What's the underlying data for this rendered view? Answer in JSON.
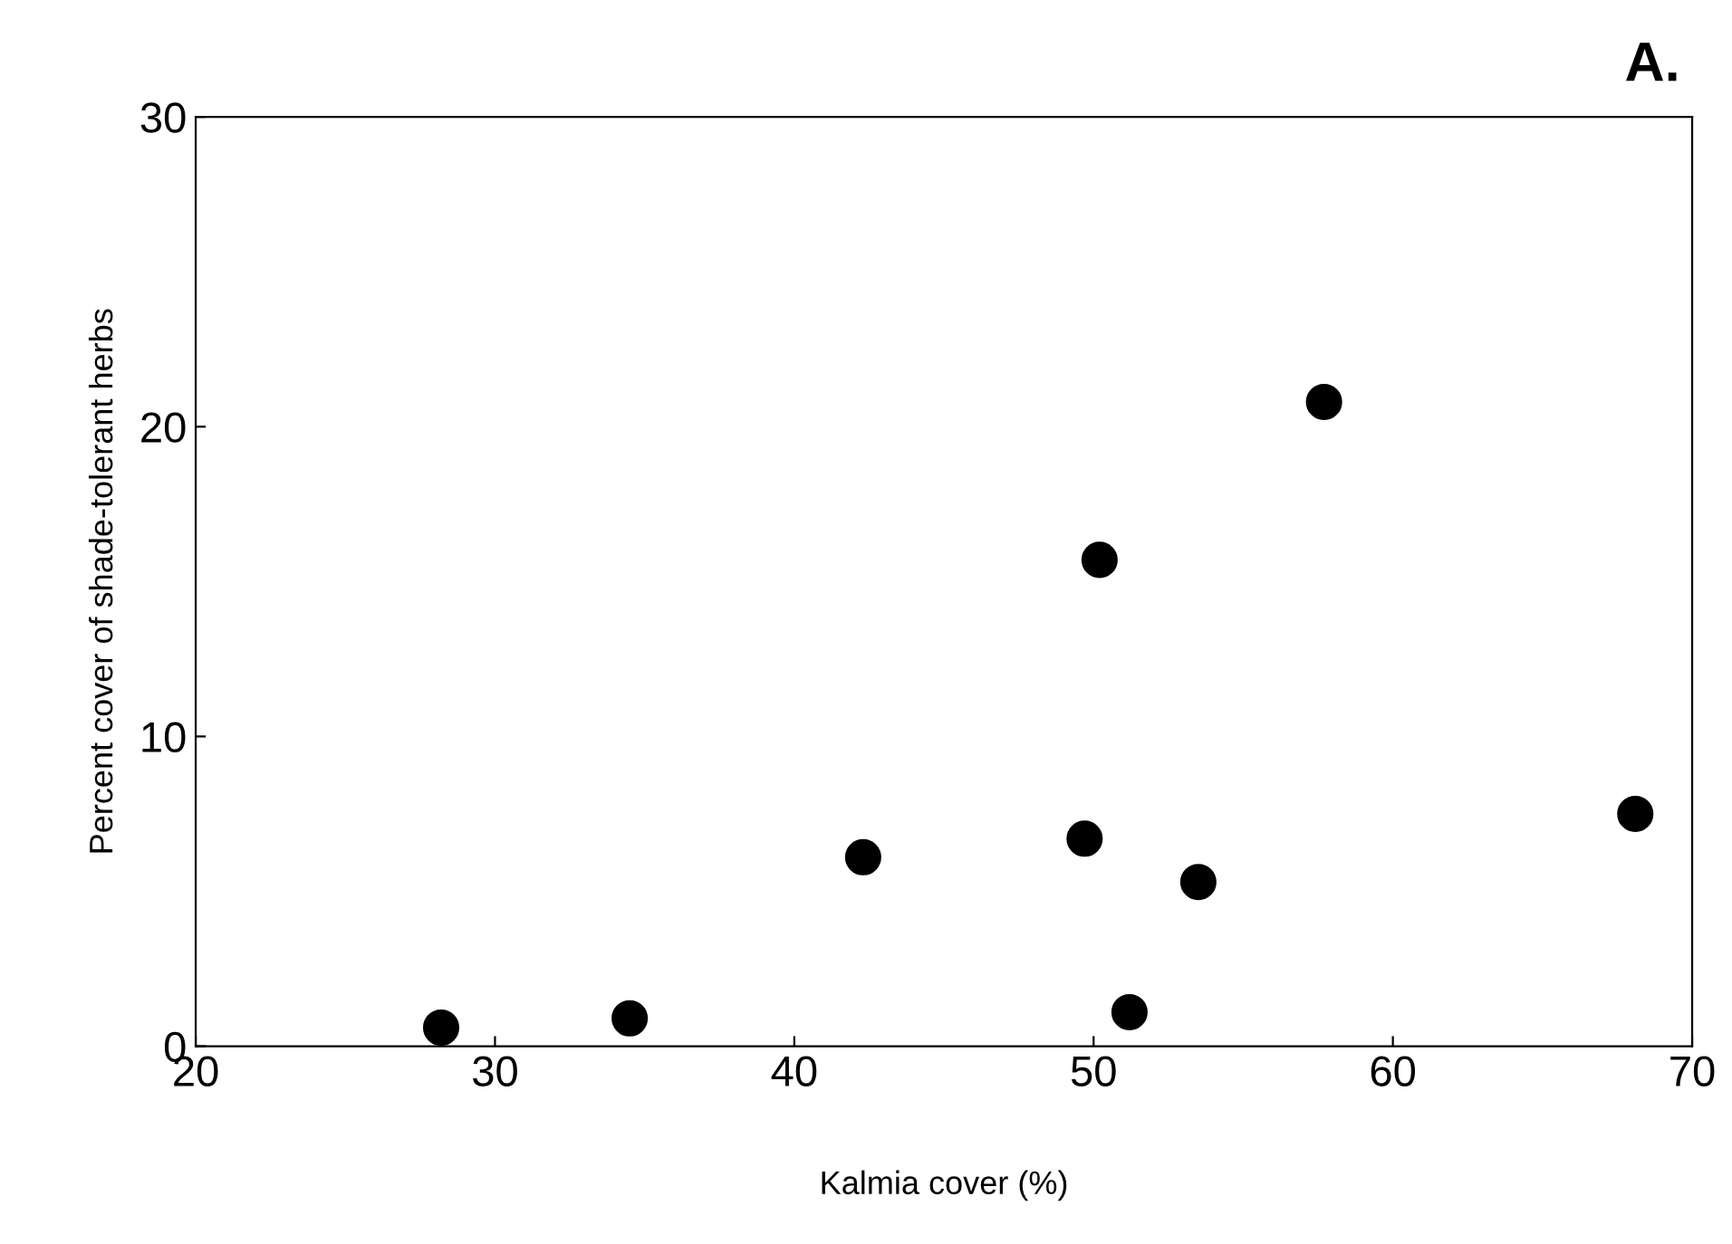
{
  "chart_data": {
    "type": "scatter",
    "title": "A.",
    "xlabel": "Kalmia cover (%)",
    "ylabel": "Percent cover of shade-tolerant herbs",
    "x": [
      28.2,
      34.5,
      42.3,
      49.7,
      50.2,
      51.2,
      53.5,
      57.7,
      68.1
    ],
    "series": [
      {
        "color": "#000000",
        "values": [
          0.6,
          0.9,
          6.1,
          6.7,
          15.7,
          1.1,
          5.3,
          20.8,
          7.5
        ]
      }
    ],
    "xlim": [
      20,
      70
    ],
    "ylim": [
      0,
      30
    ],
    "xticks": [
      20,
      30,
      40,
      50,
      60,
      70
    ],
    "yticks": [
      0,
      10,
      20,
      30
    ],
    "marker": "circle",
    "grid": false,
    "legend": false
  }
}
